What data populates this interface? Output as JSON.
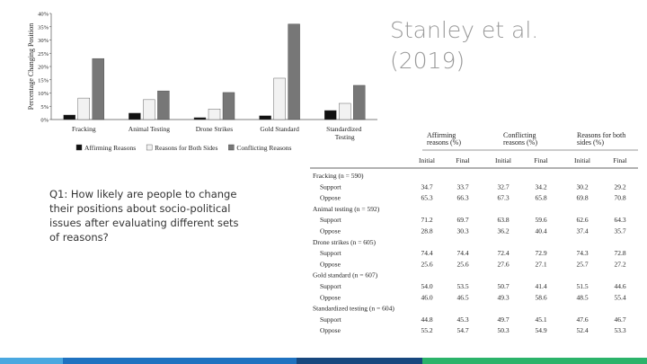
{
  "title_lines": [
    "Stanley et al.",
    "(2019)"
  ],
  "question": "Q1: How likely are people to change their positions about socio-political issues after evaluating different sets of reasons?",
  "chart_data": {
    "type": "bar",
    "y_label": "Percentage Changing Position",
    "categories": [
      "Fracking",
      "Animal Testing",
      "Drone Strikes",
      "Gold Standard",
      "Standardized Testing"
    ],
    "series": [
      {
        "name": "Affirming Reasons",
        "color": "#111111",
        "values": [
          1.7,
          2.4,
          0.7,
          1.4,
          3.4
        ]
      },
      {
        "name": "Reasons for Both Sides",
        "color": "#f2f2f2",
        "values": [
          8.1,
          7.5,
          4,
          15.6,
          6.1
        ]
      },
      {
        "name": "Conflicting Reasons",
        "color": "#777777",
        "values": [
          23,
          10.8,
          10.2,
          36,
          12.9
        ]
      }
    ],
    "ylim": [
      0,
      40
    ],
    "yticks": [
      {
        "value": 0,
        "label": "0%"
      },
      {
        "value": 5,
        "label": "5%"
      },
      {
        "value": 10,
        "label": "10%"
      },
      {
        "value": 15,
        "label": "15%"
      },
      {
        "value": 20,
        "label": "20%"
      },
      {
        "value": 25,
        "label": "25%"
      },
      {
        "value": 30,
        "label": "30%"
      },
      {
        "value": 35,
        "label": "35%"
      },
      {
        "value": 40,
        "label": "40%"
      }
    ]
  },
  "table": {
    "column_groups": [
      "Affirming reasons (%)",
      "Conflicting reasons (%)",
      "Reasons for both sides (%)"
    ],
    "subheaders": [
      "Initial",
      "Final",
      "Initial",
      "Final",
      "Initial",
      "Final"
    ],
    "groups": [
      {
        "label": "Fracking (n = 590)",
        "rows": [
          {
            "label": "Support",
            "values": [
              "34.7",
              "33.7",
              "32.7",
              "34.2",
              "30.2",
              "29.2"
            ]
          },
          {
            "label": "Oppose",
            "values": [
              "65.3",
              "66.3",
              "67.3",
              "65.8",
              "69.8",
              "70.8"
            ]
          }
        ]
      },
      {
        "label": "Animal testing (n = 592)",
        "rows": [
          {
            "label": "Support",
            "values": [
              "71.2",
              "69.7",
              "63.8",
              "59.6",
              "62.6",
              "64.3"
            ]
          },
          {
            "label": "Oppose",
            "values": [
              "28.8",
              "30.3",
              "36.2",
              "40.4",
              "37.4",
              "35.7"
            ]
          }
        ]
      },
      {
        "label": "Drone strikes (n = 605)",
        "rows": [
          {
            "label": "Support",
            "values": [
              "74.4",
              "74.4",
              "72.4",
              "72.9",
              "74.3",
              "72.8"
            ]
          },
          {
            "label": "Oppose",
            "values": [
              "25.6",
              "25.6",
              "27.6",
              "27.1",
              "25.7",
              "27.2"
            ]
          }
        ]
      },
      {
        "label": "Gold standard (n = 607)",
        "rows": [
          {
            "label": "Support",
            "values": [
              "54.0",
              "53.5",
              "50.7",
              "41.4",
              "51.5",
              "44.6"
            ]
          },
          {
            "label": "Oppose",
            "values": [
              "46.0",
              "46.5",
              "49.3",
              "58.6",
              "48.5",
              "55.4"
            ]
          }
        ]
      },
      {
        "label": "Standardized testing (n = 604)",
        "rows": [
          {
            "label": "Support",
            "values": [
              "44.8",
              "45.3",
              "49.7",
              "45.1",
              "47.6",
              "46.7"
            ]
          },
          {
            "label": "Oppose",
            "values": [
              "55.2",
              "54.7",
              "50.3",
              "54.9",
              "52.4",
              "53.3"
            ]
          }
        ]
      }
    ]
  }
}
